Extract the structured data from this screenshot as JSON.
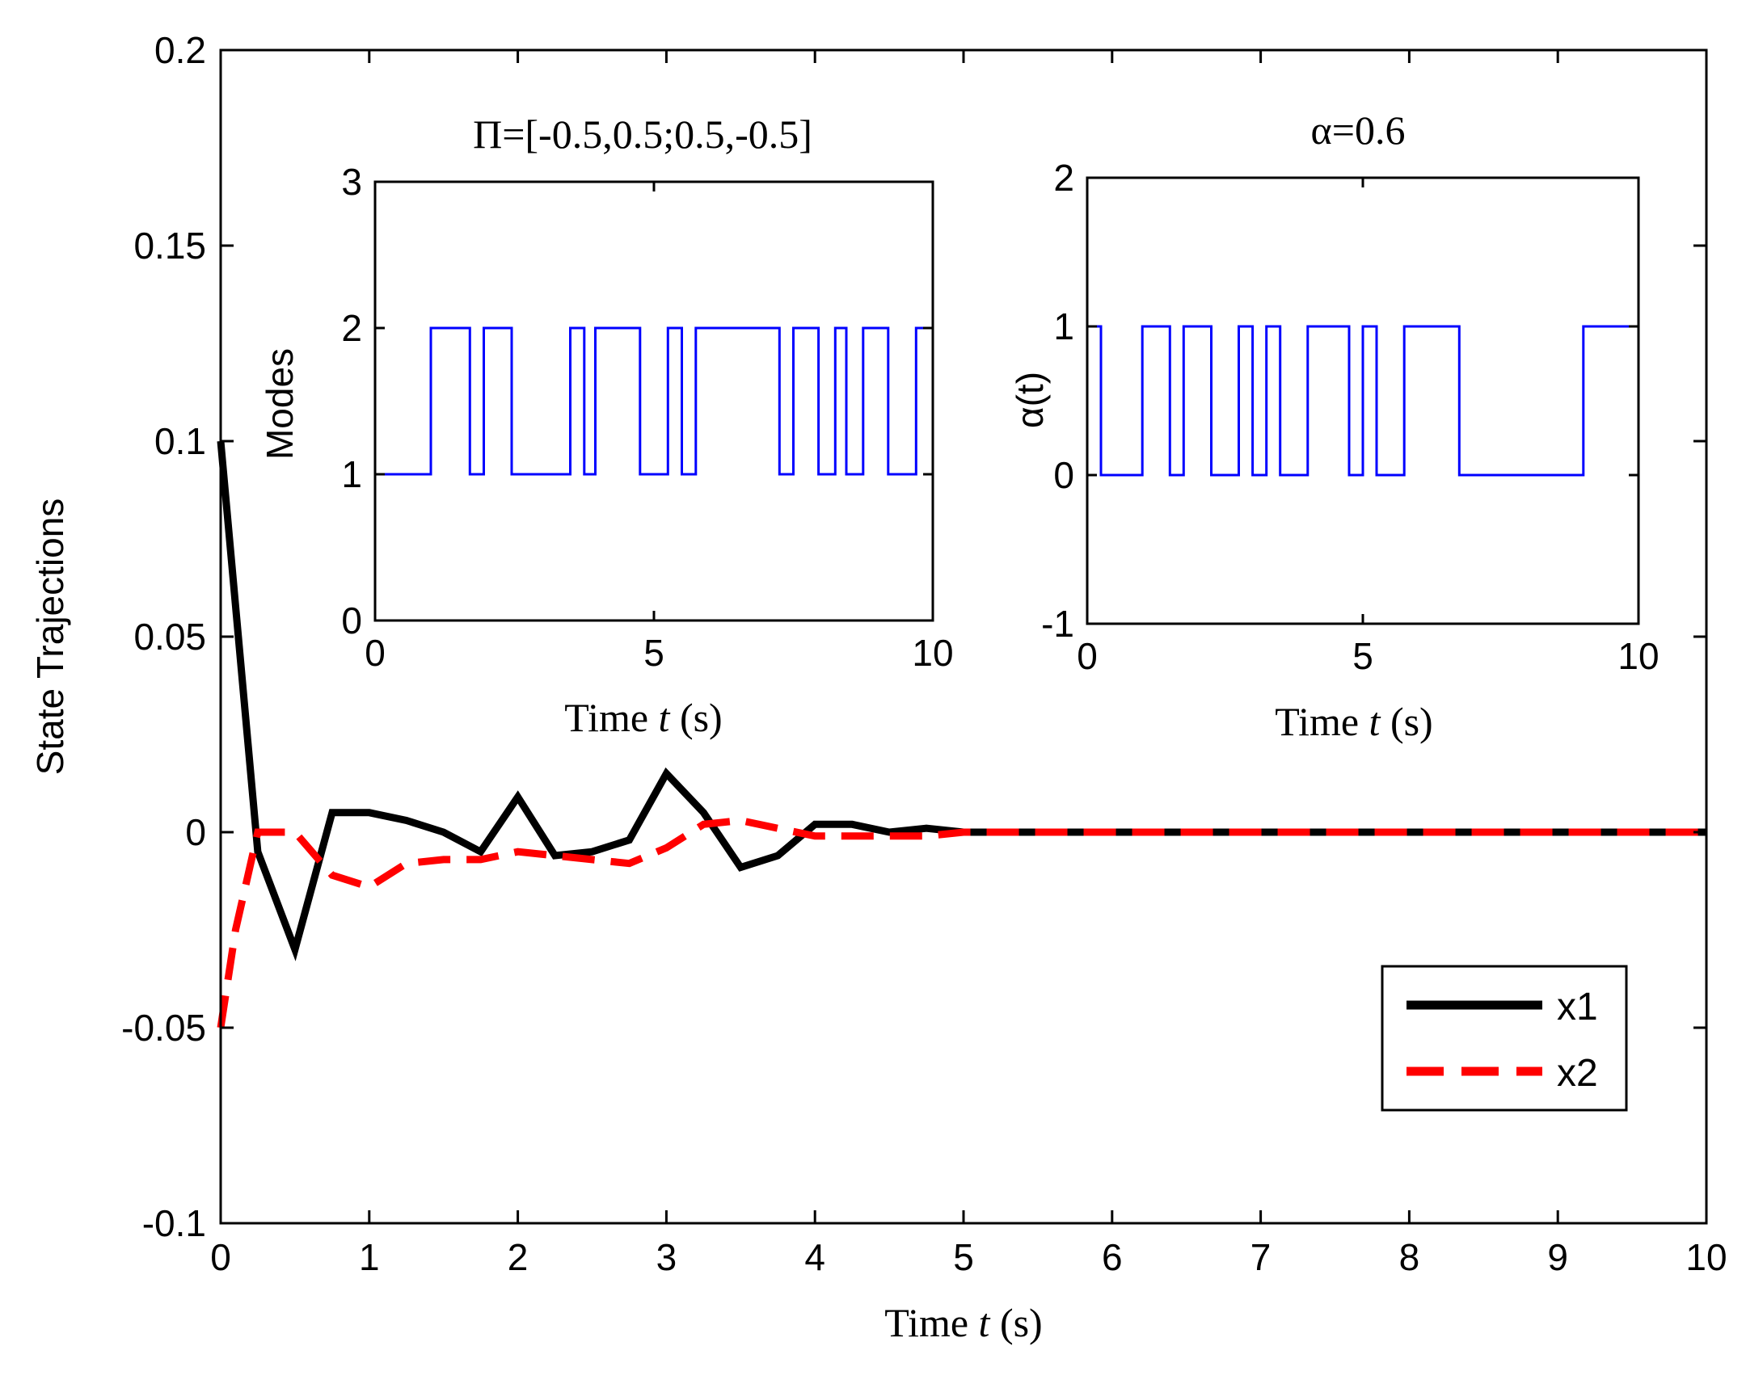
{
  "chart_data": [
    {
      "id": "main",
      "type": "line",
      "title": "",
      "xlabel_prefix": "Time",
      "xlabel_var": "t",
      "xlabel_unit": "(s)",
      "ylabel": "State Trajections",
      "xlim": [
        0,
        10
      ],
      "ylim": [
        -0.1,
        0.2
      ],
      "xticks": [
        0,
        1,
        2,
        3,
        4,
        5,
        6,
        7,
        8,
        9,
        10
      ],
      "xtick_labels": [
        "0",
        "1",
        "2",
        "3",
        "4",
        "5",
        "6",
        "7",
        "8",
        "9",
        "10"
      ],
      "yticks": [
        -0.1,
        -0.05,
        0,
        0.05,
        0.1,
        0.15,
        0.2
      ],
      "ytick_labels": [
        "-0.1",
        "-0.05",
        "0",
        "0.05",
        "0.1",
        "0.15",
        "0.2"
      ],
      "grid": false,
      "legend_position": "lower-right",
      "series": [
        {
          "name": "x1",
          "color": "#000000",
          "style": "solid",
          "x": [
            0,
            0.25,
            0.5,
            0.75,
            1.0,
            1.25,
            1.5,
            1.75,
            2.0,
            2.25,
            2.5,
            2.75,
            3.0,
            3.25,
            3.5,
            3.75,
            4.0,
            4.25,
            4.5,
            4.75,
            5.0,
            6,
            7,
            8,
            9,
            10
          ],
          "y": [
            0.1,
            -0.005,
            -0.03,
            0.005,
            0.005,
            0.003,
            0.0,
            -0.005,
            0.009,
            -0.006,
            -0.005,
            -0.002,
            0.015,
            0.005,
            -0.009,
            -0.006,
            0.002,
            0.002,
            0.0,
            0.001,
            0.0,
            0.0,
            0.0,
            0.0,
            0.0,
            0.0
          ]
        },
        {
          "name": "x2",
          "color": "#ff0000",
          "style": "dashed",
          "x": [
            0,
            0.1,
            0.25,
            0.5,
            0.75,
            1.0,
            1.25,
            1.5,
            1.75,
            2.0,
            2.25,
            2.5,
            2.75,
            3.0,
            3.25,
            3.5,
            3.75,
            4.0,
            4.25,
            4.5,
            4.75,
            5.0,
            6,
            7,
            8,
            9,
            10
          ],
          "y": [
            -0.05,
            -0.025,
            0.0,
            0.0,
            -0.011,
            -0.014,
            -0.008,
            -0.007,
            -0.007,
            -0.005,
            -0.006,
            -0.007,
            -0.008,
            -0.004,
            0.002,
            0.003,
            0.001,
            -0.001,
            -0.001,
            -0.001,
            -0.001,
            0.0,
            0.0,
            0.0,
            0.0,
            0.0,
            0.0
          ]
        }
      ]
    },
    {
      "id": "inset_modes",
      "type": "line",
      "title": "Π=[-0.5,0.5;0.5,-0.5]",
      "xlabel_prefix": "Time",
      "xlabel_var": "t",
      "xlabel_unit": "(s)",
      "ylabel": "Modes",
      "xlim": [
        0,
        10
      ],
      "ylim": [
        0,
        3
      ],
      "xticks": [
        0,
        5,
        10
      ],
      "xtick_labels": [
        "0",
        "5",
        "10"
      ],
      "yticks": [
        0,
        1,
        2,
        3
      ],
      "ytick_labels": [
        "0",
        "1",
        "2",
        "3"
      ],
      "grid": false,
      "series": [
        {
          "name": "mode",
          "color": "#0000ff",
          "style": "step",
          "x": [
            0,
            1.0,
            1.7,
            1.95,
            2.45,
            3.5,
            3.75,
            3.95,
            4.75,
            5.25,
            5.5,
            5.75,
            7.25,
            7.5,
            7.95,
            8.25,
            8.45,
            8.75,
            9.2,
            9.7,
            10
          ],
          "y": [
            1,
            2,
            1,
            2,
            1,
            2,
            1,
            2,
            1,
            2,
            1,
            2,
            1,
            2,
            1,
            2,
            1,
            2,
            1,
            2,
            2
          ]
        }
      ]
    },
    {
      "id": "inset_alpha",
      "type": "line",
      "title": "α=0.6",
      "xlabel_prefix": "Time",
      "xlabel_var": "t",
      "xlabel_unit": "(s)",
      "ylabel": "α(t)",
      "xlim": [
        0,
        10
      ],
      "ylim": [
        -1,
        2
      ],
      "xticks": [
        0,
        5,
        10
      ],
      "xtick_labels": [
        "0",
        "5",
        "10"
      ],
      "yticks": [
        -1,
        0,
        1,
        2
      ],
      "ytick_labels": [
        "-1",
        "0",
        "1",
        "2"
      ],
      "grid": false,
      "series": [
        {
          "name": "alpha",
          "color": "#0000ff",
          "style": "step",
          "x": [
            0,
            0.25,
            1.0,
            1.5,
            1.75,
            2.25,
            2.75,
            3.0,
            3.25,
            3.5,
            4.0,
            4.75,
            5.0,
            5.25,
            5.75,
            6.75,
            9.0,
            9.25,
            10
          ],
          "y": [
            1,
            0,
            1,
            0,
            1,
            0,
            1,
            0,
            1,
            0,
            1,
            0,
            1,
            0,
            1,
            0,
            1,
            1,
            1
          ]
        }
      ]
    }
  ],
  "legend": {
    "x1": "x1",
    "x2": "x2"
  }
}
